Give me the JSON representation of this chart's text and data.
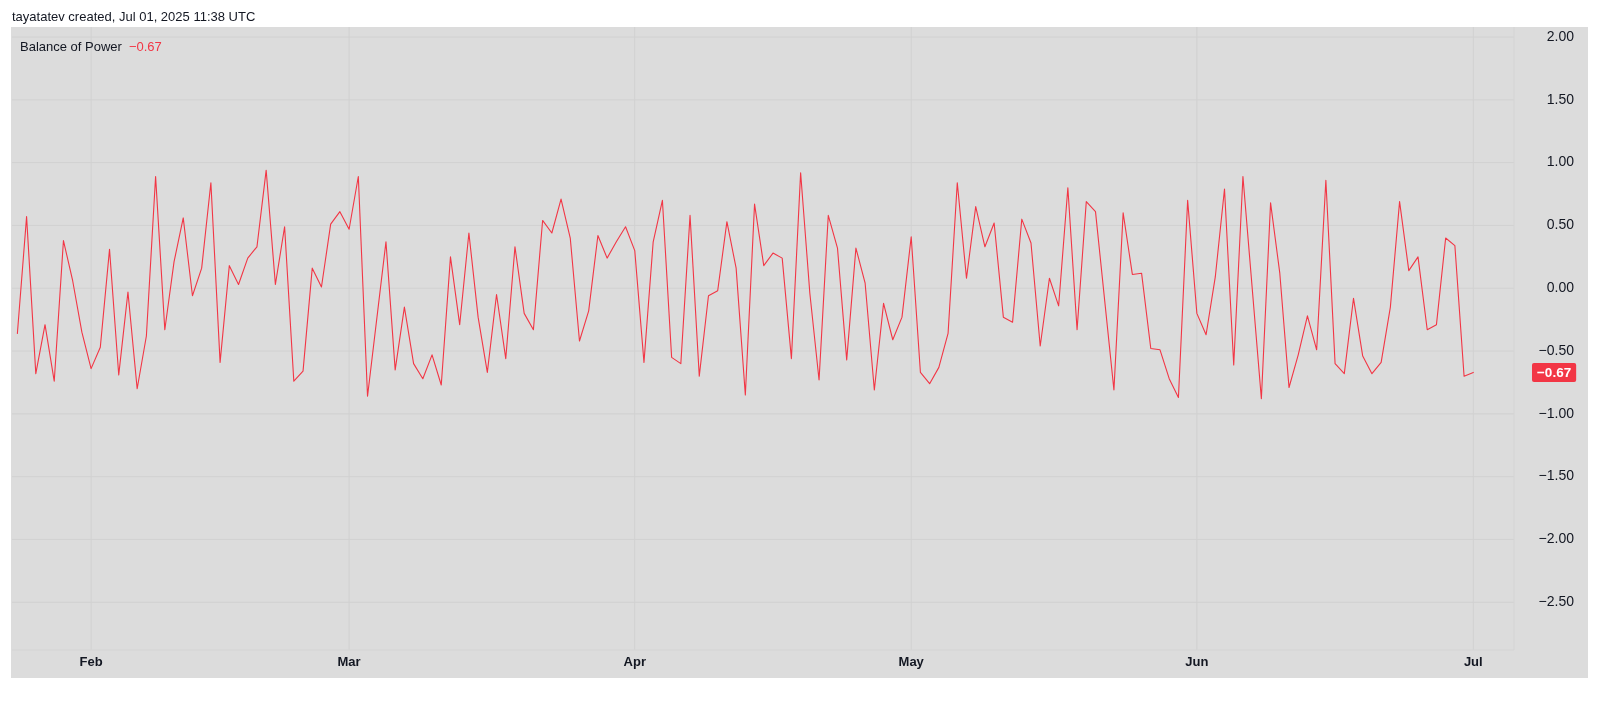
{
  "chart_data": {
    "type": "line",
    "title": "Balance of Power",
    "annotations": [
      "tayatatev created, Jul 01, 2025 11:38 UTC",
      "−0.67",
      "−0.67"
    ],
    "color": "#f23645",
    "grid": true,
    "xlim": [
      "2025-01-23T10:00",
      "2025-07-05T10:00"
    ],
    "xticks": [
      {
        "value": "2025-02-01",
        "label": "Feb"
      },
      {
        "value": "2025-03-01",
        "label": "Mar"
      },
      {
        "value": "2025-04-01",
        "label": "Apr"
      },
      {
        "value": "2025-05-01",
        "label": "May"
      },
      {
        "value": "2025-06-01",
        "label": "Jun"
      },
      {
        "value": "2025-07-01",
        "label": "Jul"
      }
    ],
    "ylim": [
      -2.88,
      2.08
    ],
    "yticks": [
      {
        "value": 2,
        "label": "2.00"
      },
      {
        "value": 1.5,
        "label": "1.50"
      },
      {
        "value": 1,
        "label": "1.00"
      },
      {
        "value": 0.5,
        "label": "0.50"
      },
      {
        "value": 0,
        "label": "0.00"
      },
      {
        "value": -0.5,
        "label": "−0.50"
      },
      {
        "value": -1,
        "label": "−1.00"
      },
      {
        "value": -1.5,
        "label": "−1.50"
      },
      {
        "value": -2,
        "label": "−2.00"
      },
      {
        "value": -2.5,
        "label": "−2.50"
      }
    ],
    "x": [
      "2025-01-24",
      "2025-01-25",
      "2025-01-26",
      "2025-01-27",
      "2025-01-28",
      "2025-01-29",
      "2025-01-30",
      "2025-01-31",
      "2025-02-01",
      "2025-02-02",
      "2025-02-03",
      "2025-02-04",
      "2025-02-05",
      "2025-02-06",
      "2025-02-07",
      "2025-02-08",
      "2025-02-09",
      "2025-02-10",
      "2025-02-11",
      "2025-02-12",
      "2025-02-13",
      "2025-02-14",
      "2025-02-15",
      "2025-02-16",
      "2025-02-17",
      "2025-02-18",
      "2025-02-19",
      "2025-02-20",
      "2025-02-21",
      "2025-02-22",
      "2025-02-23",
      "2025-02-24",
      "2025-02-25",
      "2025-02-26",
      "2025-02-27",
      "2025-02-28",
      "2025-03-01",
      "2025-03-02",
      "2025-03-03",
      "2025-03-05",
      "2025-03-06",
      "2025-03-07",
      "2025-03-08",
      "2025-03-09",
      "2025-03-10",
      "2025-03-11",
      "2025-03-12",
      "2025-03-13",
      "2025-03-14",
      "2025-03-15",
      "2025-03-16",
      "2025-03-17",
      "2025-03-18",
      "2025-03-19",
      "2025-03-20",
      "2025-03-21",
      "2025-03-22",
      "2025-03-23",
      "2025-03-24",
      "2025-03-25",
      "2025-03-26",
      "2025-03-27",
      "2025-03-28",
      "2025-03-29",
      "2025-03-30",
      "2025-03-31",
      "2025-04-01",
      "2025-04-02",
      "2025-04-03",
      "2025-04-04",
      "2025-04-05",
      "2025-04-06",
      "2025-04-07",
      "2025-04-08",
      "2025-04-09",
      "2025-04-10",
      "2025-04-11",
      "2025-04-12",
      "2025-04-13",
      "2025-04-14",
      "2025-04-15",
      "2025-04-16",
      "2025-04-17",
      "2025-04-18",
      "2025-04-19",
      "2025-04-20",
      "2025-04-21",
      "2025-04-22",
      "2025-04-23",
      "2025-04-24",
      "2025-04-25",
      "2025-04-26",
      "2025-04-27",
      "2025-04-28",
      "2025-04-29",
      "2025-04-30",
      "2025-05-01",
      "2025-05-02",
      "2025-05-03",
      "2025-05-04",
      "2025-05-05",
      "2025-05-06",
      "2025-05-07",
      "2025-05-08",
      "2025-05-09",
      "2025-05-10",
      "2025-05-11",
      "2025-05-12",
      "2025-05-13",
      "2025-05-14",
      "2025-05-15",
      "2025-05-16",
      "2025-05-17",
      "2025-05-18",
      "2025-05-19",
      "2025-05-20",
      "2025-05-21",
      "2025-05-23",
      "2025-05-24",
      "2025-05-25",
      "2025-05-26",
      "2025-05-27",
      "2025-05-28",
      "2025-05-29",
      "2025-05-30",
      "2025-05-31",
      "2025-06-01",
      "2025-06-02",
      "2025-06-03",
      "2025-06-04",
      "2025-06-05",
      "2025-06-06",
      "2025-06-08",
      "2025-06-09",
      "2025-06-10",
      "2025-06-11",
      "2025-06-12",
      "2025-06-13",
      "2025-06-14",
      "2025-06-15",
      "2025-06-16",
      "2025-06-17",
      "2025-06-18",
      "2025-06-19",
      "2025-06-20",
      "2025-06-21",
      "2025-06-22",
      "2025-06-23",
      "2025-06-24",
      "2025-06-25",
      "2025-06-26",
      "2025-06-27",
      "2025-06-28",
      "2025-06-29",
      "2025-06-30",
      "2025-07-01"
    ],
    "values": [
      -0.36,
      0.57,
      -0.68,
      -0.29,
      -0.74,
      0.38,
      0.06,
      -0.35,
      -0.64,
      -0.47,
      0.31,
      -0.69,
      -0.03,
      -0.8,
      -0.38,
      0.89,
      -0.33,
      0.21,
      0.56,
      -0.06,
      0.16,
      0.84,
      -0.59,
      0.18,
      0.03,
      0.24,
      0.33,
      0.94,
      0.03,
      0.49,
      -0.74,
      -0.66,
      0.16,
      0.01,
      0.51,
      0.61,
      0.47,
      0.89,
      -0.86,
      0.37,
      -0.65,
      -0.15,
      -0.6,
      -0.72,
      -0.53,
      -0.77,
      0.25,
      -0.29,
      0.44,
      -0.23,
      -0.67,
      -0.05,
      -0.56,
      0.33,
      -0.2,
      -0.33,
      0.54,
      0.44,
      0.71,
      0.4,
      -0.42,
      -0.18,
      0.42,
      0.24,
      0.37,
      0.49,
      0.3,
      -0.59,
      0.37,
      0.7,
      -0.55,
      -0.6,
      0.58,
      -0.7,
      -0.06,
      -0.02,
      0.53,
      0.16,
      -0.85,
      0.67,
      0.18,
      0.28,
      0.24,
      -0.56,
      0.92,
      -0.04,
      -0.73,
      0.58,
      0.32,
      -0.57,
      0.32,
      0.04,
      -0.81,
      -0.12,
      -0.41,
      -0.23,
      0.41,
      -0.67,
      -0.76,
      -0.63,
      -0.36,
      0.84,
      0.08,
      0.65,
      0.33,
      0.52,
      -0.23,
      -0.27,
      0.55,
      0.36,
      -0.46,
      0.08,
      -0.14,
      0.8,
      -0.33,
      0.69,
      0.61,
      -0.81,
      0.6,
      0.11,
      0.12,
      -0.48,
      -0.49,
      -0.72,
      -0.87,
      0.7,
      -0.2,
      -0.37,
      0.09,
      0.79,
      -0.61,
      0.89,
      -0.88,
      0.68,
      0.12,
      -0.79,
      -0.53,
      -0.22,
      -0.49,
      0.86,
      -0.6,
      -0.68,
      -0.08,
      -0.54,
      -0.68,
      -0.59,
      -0.15,
      0.69,
      0.14,
      0.25,
      -0.33,
      -0.29,
      0.4,
      0.34,
      -0.7,
      -0.67
    ]
  }
}
